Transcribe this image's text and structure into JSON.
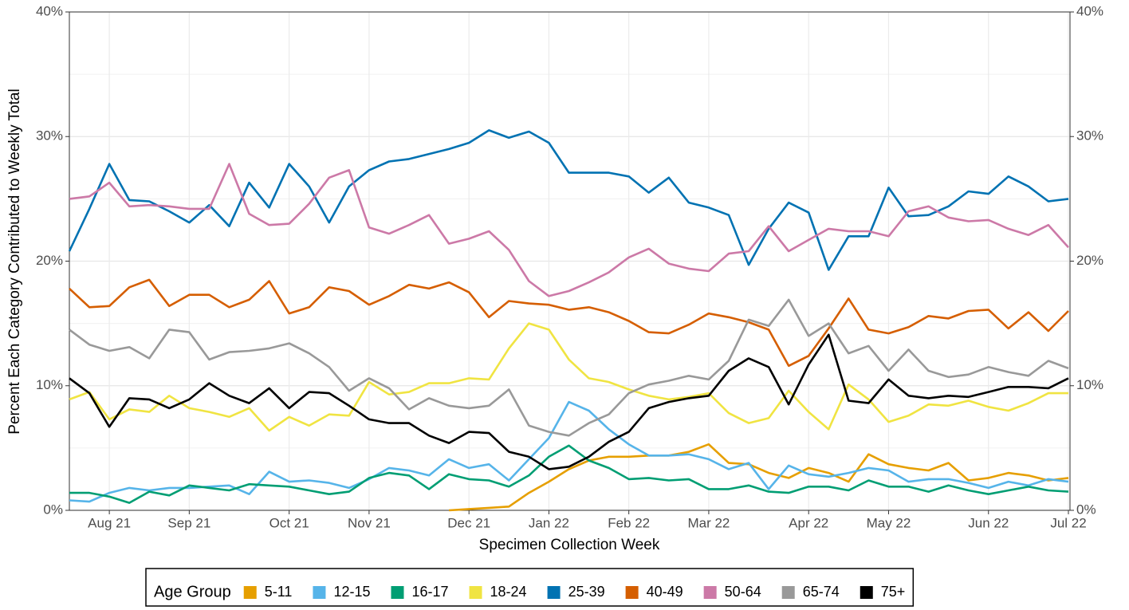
{
  "chart_data": {
    "type": "line",
    "x_label": "Specimen Collection Week",
    "y_label": "Percent Each Category Contributed to Weekly Total",
    "legend_title": "Age Group",
    "legend_position": "bottom",
    "grid": true,
    "categories": [
      null,
      null,
      "Aug 21",
      null,
      null,
      null,
      "Sep 21",
      null,
      null,
      null,
      null,
      "Oct 21",
      null,
      null,
      null,
      "Nov 21",
      null,
      null,
      null,
      null,
      "Dec 21",
      null,
      null,
      null,
      "Jan 22",
      null,
      null,
      null,
      "Feb 22",
      null,
      null,
      null,
      "Mar 22",
      null,
      null,
      null,
      null,
      "Apr 22",
      null,
      null,
      null,
      "May 22",
      null,
      null,
      null,
      null,
      "Jun 22",
      null,
      null,
      null,
      "Jul 22"
    ],
    "ylim": [
      0,
      40
    ],
    "yticks": [
      {
        "value": 0,
        "label": "0%"
      },
      {
        "value": 10,
        "label": "10%"
      },
      {
        "value": 20,
        "label": "20%"
      },
      {
        "value": 30,
        "label": "30%"
      },
      {
        "value": 40,
        "label": "40%"
      }
    ],
    "y2lim": [
      0,
      40
    ],
    "y2ticks": [
      {
        "value": 0,
        "label": "0%"
      },
      {
        "value": 10,
        "label": "10%"
      },
      {
        "value": 20,
        "label": "20%"
      },
      {
        "value": 30,
        "label": "30%"
      },
      {
        "value": 40,
        "label": "40%"
      }
    ],
    "series": [
      {
        "name": "5-11",
        "color": "#E69F00",
        "values": [
          null,
          null,
          null,
          null,
          null,
          null,
          null,
          null,
          null,
          null,
          null,
          null,
          null,
          null,
          null,
          null,
          null,
          null,
          null,
          0.0,
          0.1,
          0.2,
          0.3,
          1.4,
          2.3,
          3.3,
          4.0,
          4.3,
          4.3,
          4.4,
          4.4,
          4.7,
          5.3,
          3.8,
          3.7,
          3.0,
          2.6,
          3.4,
          3.0,
          2.3,
          4.5,
          3.7,
          3.4,
          3.2,
          3.8,
          2.4,
          2.6,
          3.0,
          2.8,
          2.4,
          2.6
        ]
      },
      {
        "name": "12-15",
        "color": "#56B4E9",
        "values": [
          0.8,
          0.7,
          1.4,
          1.8,
          1.6,
          1.8,
          1.8,
          1.9,
          2.0,
          1.3,
          3.1,
          2.3,
          2.4,
          2.2,
          1.8,
          2.5,
          3.4,
          3.2,
          2.8,
          4.1,
          3.4,
          3.7,
          2.4,
          4.1,
          5.8,
          8.7,
          8.0,
          6.5,
          5.3,
          4.4,
          4.4,
          4.5,
          4.1,
          3.3,
          3.8,
          1.7,
          3.6,
          2.9,
          2.7,
          3.0,
          3.4,
          3.2,
          2.3,
          2.5,
          2.5,
          2.2,
          1.8,
          2.3,
          2.0,
          2.5,
          2.3
        ]
      },
      {
        "name": "16-17",
        "color": "#009E73",
        "values": [
          1.4,
          1.4,
          1.1,
          0.6,
          1.5,
          1.2,
          2.0,
          1.8,
          1.6,
          2.1,
          2.0,
          1.9,
          1.6,
          1.3,
          1.5,
          2.6,
          3.0,
          2.8,
          1.7,
          2.9,
          2.5,
          2.4,
          1.9,
          2.8,
          4.3,
          5.2,
          4.0,
          3.4,
          2.5,
          2.6,
          2.4,
          2.5,
          1.7,
          1.7,
          2.0,
          1.5,
          1.4,
          1.9,
          1.9,
          1.6,
          2.4,
          1.9,
          1.9,
          1.5,
          2.0,
          1.6,
          1.3,
          1.6,
          1.9,
          1.6,
          1.5
        ]
      },
      {
        "name": "18-24",
        "color": "#F0E442",
        "values": [
          8.9,
          9.5,
          7.3,
          8.1,
          7.9,
          9.2,
          8.2,
          7.9,
          7.5,
          8.2,
          6.4,
          7.5,
          6.8,
          7.7,
          7.6,
          10.3,
          9.3,
          9.5,
          10.2,
          10.2,
          10.6,
          10.5,
          13.0,
          15.0,
          14.5,
          12.1,
          10.6,
          10.3,
          9.7,
          9.2,
          8.9,
          9.1,
          9.4,
          7.8,
          7.0,
          7.4,
          9.6,
          7.9,
          6.5,
          10.1,
          8.9,
          7.1,
          7.6,
          8.5,
          8.4,
          8.8,
          8.3,
          8.0,
          8.6,
          9.4,
          9.4
        ]
      },
      {
        "name": "25-39",
        "color": "#0072B2",
        "values": [
          20.8,
          24.2,
          27.8,
          24.9,
          24.8,
          24.0,
          23.1,
          24.5,
          22.8,
          26.3,
          24.3,
          27.8,
          26.0,
          23.1,
          26.0,
          27.3,
          28.0,
          28.2,
          28.6,
          29.0,
          29.5,
          30.5,
          29.9,
          30.4,
          29.5,
          27.1,
          27.1,
          27.1,
          26.8,
          25.5,
          26.7,
          24.7,
          24.3,
          23.7,
          19.7,
          22.6,
          24.7,
          23.9,
          19.3,
          22.0,
          22.0,
          25.9,
          23.6,
          23.7,
          24.4,
          25.6,
          25.4,
          26.8,
          26.0,
          24.8,
          25.0
        ]
      },
      {
        "name": "40-49",
        "color": "#D55E00",
        "values": [
          17.8,
          16.3,
          16.4,
          17.9,
          18.5,
          16.4,
          17.3,
          17.3,
          16.3,
          16.9,
          18.4,
          15.8,
          16.3,
          17.9,
          17.6,
          16.5,
          17.2,
          18.1,
          17.8,
          18.3,
          17.5,
          15.5,
          16.8,
          16.6,
          16.5,
          16.1,
          16.3,
          15.9,
          15.2,
          14.3,
          14.2,
          14.9,
          15.8,
          15.5,
          15.1,
          14.5,
          11.6,
          12.4,
          14.6,
          17.0,
          14.5,
          14.2,
          14.7,
          15.6,
          15.4,
          16.0,
          16.1,
          14.6,
          15.9,
          14.4,
          16.0
        ]
      },
      {
        "name": "50-64",
        "color": "#CC79A7",
        "values": [
          25.0,
          25.2,
          26.3,
          24.4,
          24.5,
          24.4,
          24.2,
          24.2,
          27.8,
          23.8,
          22.9,
          23.0,
          24.6,
          26.7,
          27.3,
          22.7,
          22.2,
          22.9,
          23.7,
          21.4,
          21.8,
          22.4,
          20.9,
          18.4,
          17.2,
          17.6,
          18.3,
          19.1,
          20.3,
          21.0,
          19.8,
          19.4,
          19.2,
          20.6,
          20.8,
          22.8,
          20.8,
          21.7,
          22.6,
          22.4,
          22.4,
          22.0,
          24.0,
          24.4,
          23.5,
          23.2,
          23.3,
          22.6,
          22.1,
          22.9,
          21.1
        ]
      },
      {
        "name": "65-74",
        "color": "#999999",
        "values": [
          14.5,
          13.3,
          12.8,
          13.1,
          12.2,
          14.5,
          14.3,
          12.1,
          12.7,
          12.8,
          13.0,
          13.4,
          12.6,
          11.5,
          9.6,
          10.6,
          9.8,
          8.1,
          9.0,
          8.4,
          8.2,
          8.4,
          9.7,
          6.8,
          6.3,
          6.0,
          7.0,
          7.7,
          9.4,
          10.1,
          10.4,
          10.8,
          10.5,
          12.0,
          15.3,
          14.8,
          16.9,
          14.0,
          15.0,
          12.6,
          13.2,
          11.2,
          12.9,
          11.2,
          10.7,
          10.9,
          11.5,
          11.1,
          10.8,
          12.0,
          11.4
        ]
      },
      {
        "name": "75+",
        "color": "#000000",
        "values": [
          10.6,
          9.4,
          6.7,
          9.0,
          8.9,
          8.2,
          8.9,
          10.2,
          9.2,
          8.6,
          9.8,
          8.2,
          9.5,
          9.4,
          8.4,
          7.3,
          7.0,
          7.0,
          6.0,
          5.4,
          6.3,
          6.2,
          4.7,
          4.3,
          3.3,
          3.5,
          4.3,
          5.5,
          6.3,
          8.2,
          8.7,
          9.0,
          9.2,
          11.2,
          12.2,
          11.5,
          8.5,
          11.7,
          14.1,
          8.8,
          8.6,
          10.5,
          9.2,
          9.0,
          9.2,
          9.1,
          9.5,
          9.9,
          9.9,
          9.8,
          10.6
        ]
      }
    ]
  }
}
